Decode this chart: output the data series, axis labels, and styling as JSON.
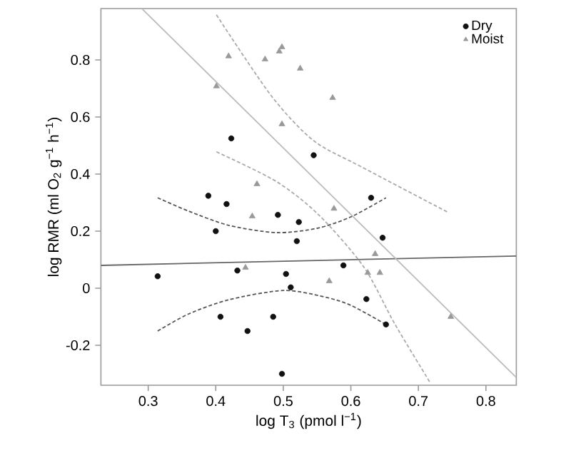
{
  "chart_data": {
    "type": "scatter",
    "xlabel": "log T$_{3}$ (pmol l$^{−1}$)",
    "ylabel": "log RMR (ml O$_{2}$ g$^{−1}$ h$^{−1}$)",
    "xlim": [
      0.23,
      0.845
    ],
    "ylim": [
      -0.34,
      0.98
    ],
    "xticks": [
      0.3,
      0.4,
      0.5,
      0.6,
      0.7,
      0.8
    ],
    "yticks": [
      -0.2,
      0,
      0.2,
      0.4,
      0.6,
      0.8
    ],
    "grid": false,
    "legend": "top right",
    "series": [
      {
        "name": "Dry",
        "marker": "circle",
        "color": "#111111",
        "x": [
          0.423,
          0.389,
          0.416,
          0.4,
          0.492,
          0.523,
          0.52,
          0.545,
          0.63,
          0.647,
          0.589,
          0.314,
          0.432,
          0.504,
          0.511,
          0.407,
          0.447,
          0.485,
          0.498,
          0.623,
          0.652
        ],
        "values": [
          0.525,
          0.324,
          0.295,
          0.2,
          0.257,
          0.232,
          0.165,
          0.466,
          0.317,
          0.177,
          0.08,
          0.042,
          0.062,
          0.05,
          0.003,
          -0.1,
          -0.15,
          -0.1,
          -0.3,
          -0.038,
          -0.127
        ]
      },
      {
        "name": "Moist",
        "marker": "triangle",
        "color": "#999999",
        "x": [
          0.419,
          0.473,
          0.494,
          0.498,
          0.525,
          0.401,
          0.498,
          0.461,
          0.454,
          0.573,
          0.575,
          0.636,
          0.444,
          0.568,
          0.625,
          0.643,
          0.748
        ],
        "values": [
          0.813,
          0.802,
          0.83,
          0.845,
          0.77,
          0.708,
          0.575,
          0.365,
          0.252,
          0.667,
          0.279,
          0.12,
          0.072,
          0.025,
          0.054,
          0.054,
          -0.1
        ]
      },
      {
        "type": "line",
        "marker": "none",
        "line_style": "solid",
        "color": "#666666",
        "x": [
          0.23,
          0.845
        ],
        "values": [
          0.08,
          0.113
        ]
      },
      {
        "type": "line",
        "marker": "none",
        "line_style": "solid",
        "color": "#bbbbbb",
        "x": [
          0.2915,
          0.845
        ],
        "values": [
          0.978,
          -0.313
        ]
      },
      {
        "type": "line",
        "marker": "none",
        "line_style": "dashed",
        "color": "#555555",
        "x": [
          0.314,
          0.36,
          0.42,
          0.49,
          0.55,
          0.6,
          0.652
        ],
        "values": [
          0.317,
          0.27,
          0.22,
          0.195,
          0.21,
          0.25,
          0.317
        ]
      },
      {
        "type": "line",
        "marker": "none",
        "line_style": "dashed",
        "color": "#555555",
        "x": [
          0.314,
          0.36,
          0.42,
          0.5,
          0.56,
          0.6,
          0.652
        ],
        "values": [
          -0.15,
          -0.09,
          -0.04,
          -0.008,
          -0.03,
          -0.06,
          -0.127
        ]
      },
      {
        "type": "line",
        "marker": "none",
        "line_style": "dashed",
        "color": "#aaaaaa",
        "x": [
          0.401,
          0.482,
          0.545,
          0.616,
          0.743
        ],
        "values": [
          0.958,
          0.675,
          0.517,
          0.425,
          0.267
        ]
      },
      {
        "type": "line",
        "marker": "none",
        "line_style": "dashed",
        "color": "#aaaaaa",
        "x": [
          0.401,
          0.489,
          0.552,
          0.619,
          0.665,
          0.718
        ],
        "values": [
          0.478,
          0.375,
          0.258,
          0.075,
          -0.125,
          -0.333
        ]
      }
    ]
  }
}
